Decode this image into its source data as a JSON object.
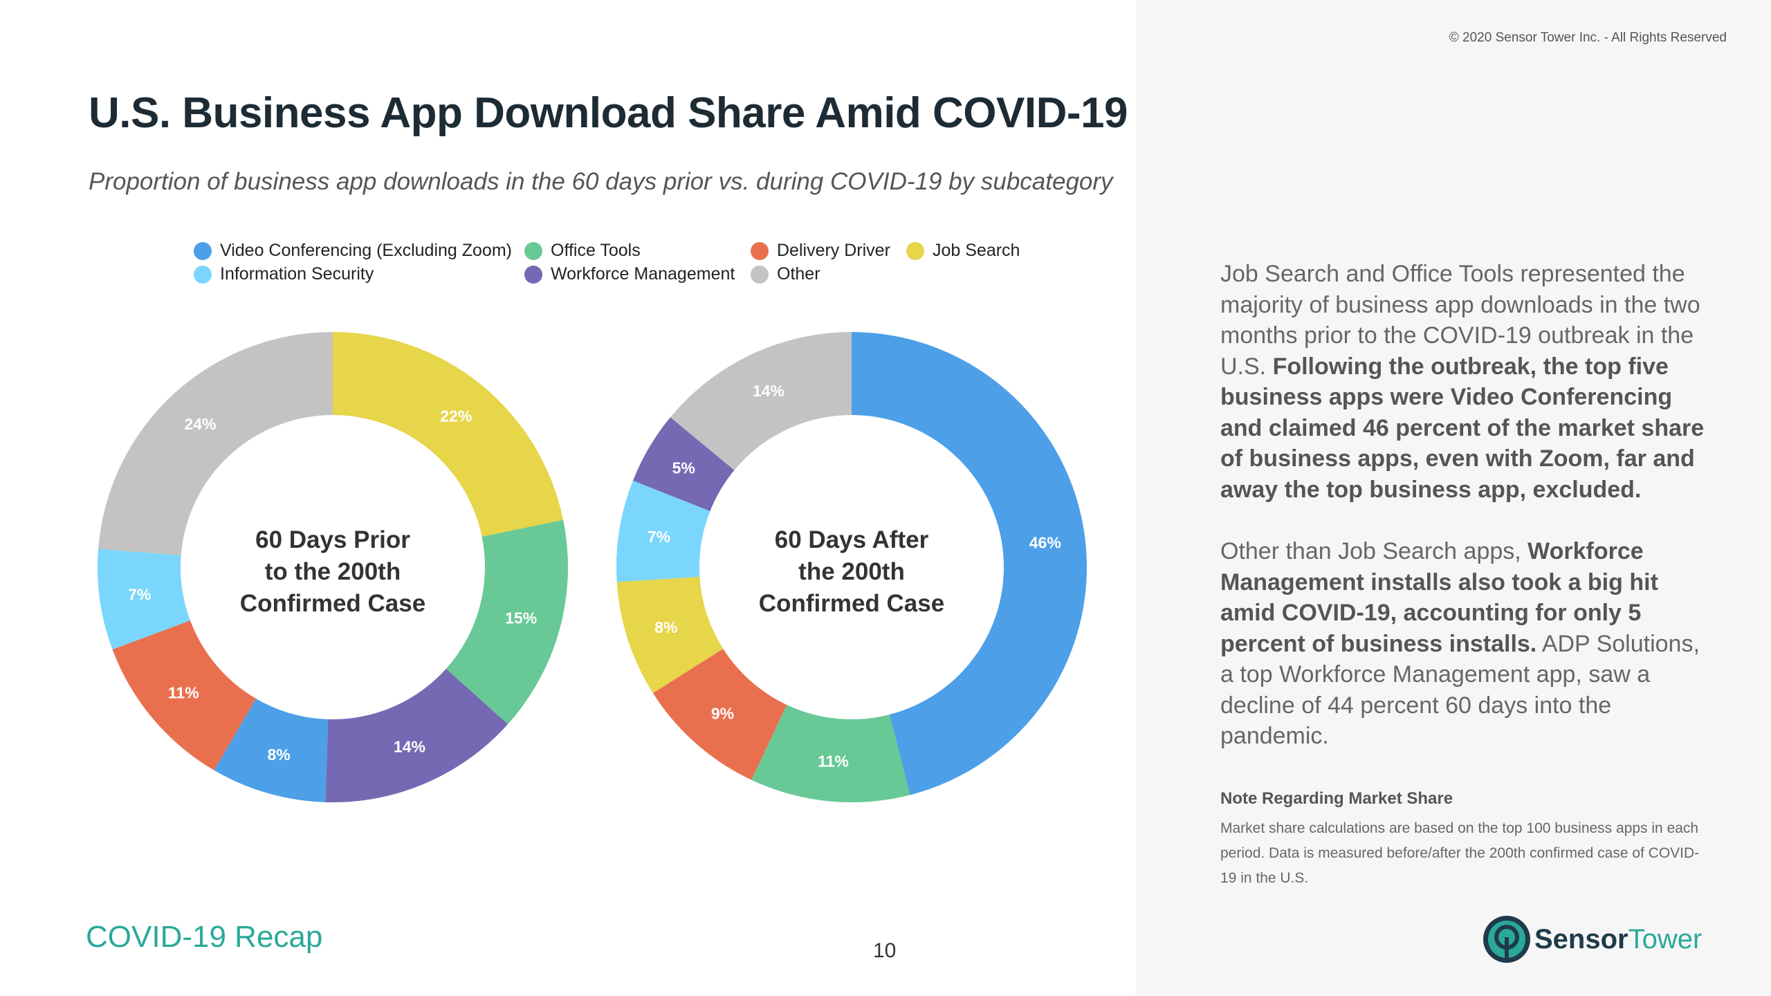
{
  "copyright": "© 2020 Sensor Tower Inc. - All Rights Reserved",
  "title": "U.S. Business App Download Share Amid COVID-19",
  "subtitle": "Proportion of business app downloads in the 60 days prior vs. during COVID-19 by subcategory",
  "legend": [
    {
      "label": "Video Conferencing (Excluding Zoom)",
      "color": "#4d9fe8"
    },
    {
      "label": "Office Tools",
      "color": "#68c996"
    },
    {
      "label": "Delivery Driver",
      "color": "#e9704f"
    },
    {
      "label": "Job Search",
      "color": "#e7d54a"
    },
    {
      "label": "Information Security",
      "color": "#7ad6fc"
    },
    {
      "label": "Workforce Management",
      "color": "#7569b3"
    },
    {
      "label": "Other",
      "color": "#c3c3c3"
    }
  ],
  "chart_data": [
    {
      "type": "pie",
      "style": "donut",
      "title": "60 Days Prior to the 200th Confirmed Case",
      "title_lines": [
        "60 Days Prior",
        "to the 200th",
        "Confirmed Case"
      ],
      "slices": [
        {
          "name": "Job Search",
          "value": 22,
          "label": "22%",
          "color": "#e7d54a"
        },
        {
          "name": "Office Tools",
          "value": 15,
          "label": "15%",
          "color": "#68c996"
        },
        {
          "name": "Workforce Management",
          "value": 14,
          "label": "14%",
          "color": "#7569b3"
        },
        {
          "name": "Video Conferencing (Excluding Zoom)",
          "value": 8,
          "label": "8%",
          "color": "#4d9fe8"
        },
        {
          "name": "Delivery Driver",
          "value": 11,
          "label": "11%",
          "color": "#e9704f"
        },
        {
          "name": "Information Security",
          "value": 7,
          "label": "7%",
          "color": "#7ad6fc"
        },
        {
          "name": "Other",
          "value": 24,
          "label": "24%",
          "color": "#c3c3c3"
        }
      ]
    },
    {
      "type": "pie",
      "style": "donut",
      "title": "60 Days After the 200th Confirmed Case",
      "title_lines": [
        "60 Days After",
        "the 200th",
        "Confirmed Case"
      ],
      "slices": [
        {
          "name": "Video Conferencing (Excluding Zoom)",
          "value": 46,
          "label": "46%",
          "color": "#4d9fe8"
        },
        {
          "name": "Office Tools",
          "value": 11,
          "label": "11%",
          "color": "#68c996"
        },
        {
          "name": "Delivery Driver",
          "value": 9,
          "label": "9%",
          "color": "#e9704f"
        },
        {
          "name": "Job Search",
          "value": 8,
          "label": "8%",
          "color": "#e7d54a"
        },
        {
          "name": "Information Security",
          "value": 7,
          "label": "7%",
          "color": "#7ad6fc"
        },
        {
          "name": "Workforce Management",
          "value": 5,
          "label": "5%",
          "color": "#7569b3"
        },
        {
          "name": "Other",
          "value": 14,
          "label": "14%",
          "color": "#c3c3c3"
        }
      ]
    }
  ],
  "body": {
    "p1_plain": "Job Search and Office Tools represented the majority of business app downloads in the two months prior to the COVID-19 outbreak in the U.S.",
    "p1_bold": "Following the outbreak, the top five business apps were Video Conferencing and claimed 46 percent of the market share of business apps, even with Zoom, far and away the top business app, excluded.",
    "p2_plain1": "Other than Job Search apps,",
    "p2_bold": "Workforce Management installs also took a big hit amid COVID-19, accounting for only 5 percent of business installs.",
    "p2_plain2": "ADP Solutions, a top Workforce Management app, saw a decline of 44 percent 60 days into the pandemic."
  },
  "note": {
    "title": "Note Regarding Market Share",
    "text": "Market share calculations are based on the top 100 business apps in each period. Data is measured before/after the 200th confirmed case of COVID-19 in the U.S."
  },
  "footer": {
    "section": "COVID-19 Recap",
    "page": "10",
    "logo_part1": "Sensor",
    "logo_part2": "Tower"
  }
}
